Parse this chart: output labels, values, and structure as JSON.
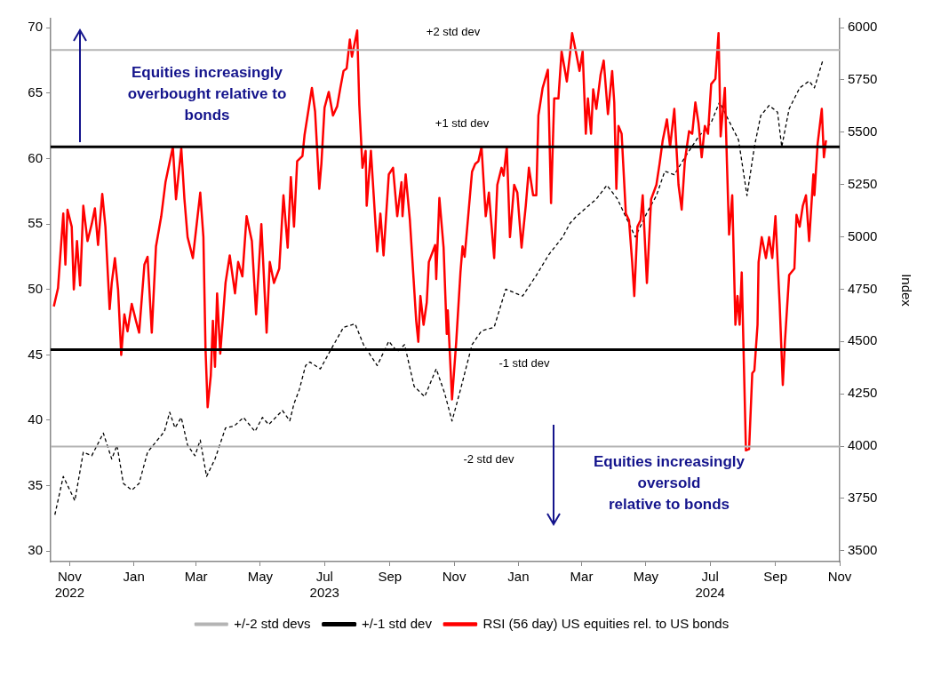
{
  "chart_data": {
    "type": "line",
    "y2label": "Index",
    "xlim": [
      "2022-10-14",
      "2024-11-01"
    ],
    "xticks": [
      {
        "value": "2022-11-01",
        "label": "Nov 2022"
      },
      {
        "value": "2023-01-01",
        "label": "Jan"
      },
      {
        "value": "2023-03-01",
        "label": "Mar"
      },
      {
        "value": "2023-05-01",
        "label": "May"
      },
      {
        "value": "2023-07-01",
        "label": "Jul 2023"
      },
      {
        "value": "2023-09-01",
        "label": "Sep"
      },
      {
        "value": "2023-11-01",
        "label": "Nov"
      },
      {
        "value": "2024-01-01",
        "label": "Jan"
      },
      {
        "value": "2024-03-01",
        "label": "Mar"
      },
      {
        "value": "2024-05-01",
        "label": "May"
      },
      {
        "value": "2024-07-01",
        "label": "Jul 2024"
      },
      {
        "value": "2024-09-01",
        "label": "Sep"
      },
      {
        "value": "2024-11-01",
        "label": "Nov"
      }
    ],
    "ylim": [
      29.2,
      70.7
    ],
    "yticks": [
      30,
      35,
      40,
      45,
      50,
      55,
      60,
      65,
      70
    ],
    "y2lim": [
      3448,
      6043
    ],
    "y2ticks": [
      3500,
      3750,
      4000,
      4250,
      4500,
      4750,
      5000,
      5250,
      5500,
      5750,
      6000
    ],
    "grid": false,
    "legend": "bottom",
    "marker": "none",
    "series": [
      {
        "name": "+/-2 std devs",
        "color": "#b4b4b4",
        "x": [
          "2022-10-14",
          "2024-11-01"
        ],
        "values": [
          68.3,
          68.3
        ]
      },
      {
        "color": "#b4b4b4",
        "x": [
          "2022-10-14",
          "2024-11-01"
        ],
        "values": [
          38.0,
          38.0
        ]
      },
      {
        "name": "+/-1 std dev",
        "color": "#000000",
        "x": [
          "2022-10-14",
          "2024-11-01"
        ],
        "values": [
          60.9,
          60.9
        ]
      },
      {
        "color": "#000000",
        "x": [
          "2022-10-14",
          "2024-11-01"
        ],
        "values": [
          45.4,
          45.4
        ]
      },
      {
        "name": "RSI (56 day) US equities rel. to US bonds",
        "color": "#ff0000",
        "x": [
          "2022-10-17",
          "2022-10-21",
          "2022-10-26",
          "2022-10-28",
          "2022-10-30",
          "2022-11-03",
          "2022-11-05",
          "2022-11-08",
          "2022-11-11",
          "2022-11-14",
          "2022-11-18",
          "2022-11-22",
          "2022-11-25",
          "2022-11-28",
          "2022-12-02",
          "2022-12-05",
          "2022-12-09",
          "2022-12-11",
          "2022-12-14",
          "2022-12-17",
          "2022-12-20",
          "2022-12-23",
          "2022-12-26",
          "2022-12-30",
          "2023-01-03",
          "2023-01-06",
          "2023-01-11",
          "2023-01-14",
          "2023-01-18",
          "2023-01-22",
          "2023-01-27",
          "2023-01-31",
          "2023-02-07",
          "2023-02-10",
          "2023-02-15",
          "2023-02-18",
          "2023-02-21",
          "2023-02-26",
          "2023-03-05",
          "2023-03-08",
          "2023-03-10",
          "2023-03-12",
          "2023-03-15",
          "2023-03-17",
          "2023-03-19",
          "2023-03-21",
          "2023-03-24",
          "2023-03-29",
          "2023-04-02",
          "2023-04-07",
          "2023-04-10",
          "2023-04-14",
          "2023-04-18",
          "2023-04-23",
          "2023-04-27",
          "2023-05-02",
          "2023-05-07",
          "2023-05-10",
          "2023-05-14",
          "2023-05-19",
          "2023-05-23",
          "2023-05-27",
          "2023-05-30",
          "2023-06-02",
          "2023-06-05",
          "2023-06-10",
          "2023-06-12",
          "2023-06-19",
          "2023-06-22",
          "2023-06-26",
          "2023-06-28",
          "2023-07-01",
          "2023-07-05",
          "2023-07-09",
          "2023-07-13",
          "2023-07-16",
          "2023-07-19",
          "2023-07-22",
          "2023-07-25",
          "2023-07-27",
          "2023-08-01",
          "2023-08-03",
          "2023-08-06",
          "2023-08-09",
          "2023-08-10",
          "2023-08-14",
          "2023-08-20",
          "2023-08-23",
          "2023-08-26",
          "2023-08-31",
          "2023-09-04",
          "2023-09-08",
          "2023-09-12",
          "2023-09-13",
          "2023-09-16",
          "2023-09-20",
          "2023-09-26",
          "2023-09-28",
          "2023-09-30",
          "2023-10-03",
          "2023-10-06",
          "2023-10-08",
          "2023-10-14",
          "2023-10-15",
          "2023-10-18",
          "2023-10-22",
          "2023-10-25",
          "2023-10-26",
          "2023-10-30",
          "2023-11-03",
          "2023-11-07",
          "2023-11-09",
          "2023-11-11",
          "2023-11-15",
          "2023-11-18",
          "2023-11-21",
          "2023-11-24",
          "2023-11-27",
          "2023-12-01",
          "2023-12-04",
          "2023-12-09",
          "2023-12-12",
          "2023-12-16",
          "2023-12-18",
          "2023-12-21",
          "2023-12-24",
          "2023-12-28",
          "2023-12-31",
          "2024-01-04",
          "2024-01-08",
          "2024-01-11",
          "2024-01-15",
          "2024-01-18",
          "2024-01-20",
          "2024-01-24",
          "2024-01-29",
          "2024-02-01",
          "2024-02-04",
          "2024-02-08",
          "2024-02-11",
          "2024-02-16",
          "2024-02-19",
          "2024-02-21",
          "2024-02-25",
          "2024-02-28",
          "2024-03-02",
          "2024-03-05",
          "2024-03-07",
          "2024-03-10",
          "2024-03-12",
          "2024-03-15",
          "2024-03-19",
          "2024-03-22",
          "2024-03-26",
          "2024-03-30",
          "2024-04-01",
          "2024-04-03",
          "2024-04-05",
          "2024-04-08",
          "2024-04-12",
          "2024-04-15",
          "2024-04-18",
          "2024-04-20",
          "2024-04-23",
          "2024-04-26",
          "2024-04-28",
          "2024-05-02",
          "2024-05-06",
          "2024-05-11",
          "2024-05-14",
          "2024-05-17",
          "2024-05-21",
          "2024-05-24",
          "2024-05-28",
          "2024-06-01",
          "2024-06-04",
          "2024-06-07",
          "2024-06-11",
          "2024-06-14",
          "2024-06-17",
          "2024-06-20",
          "2024-06-23",
          "2024-06-26",
          "2024-06-29",
          "2024-07-02",
          "2024-07-06",
          "2024-07-09",
          "2024-07-11",
          "2024-07-15",
          "2024-07-17",
          "2024-07-19",
          "2024-07-22",
          "2024-07-25",
          "2024-07-27",
          "2024-07-29",
          "2024-07-31",
          "2024-08-04",
          "2024-08-07",
          "2024-08-10",
          "2024-08-12",
          "2024-08-15",
          "2024-08-16",
          "2024-08-19",
          "2024-08-23",
          "2024-08-26",
          "2024-08-29",
          "2024-09-01",
          "2024-09-05",
          "2024-09-08",
          "2024-09-10",
          "2024-09-14",
          "2024-09-19",
          "2024-09-21",
          "2024-09-24",
          "2024-09-27",
          "2024-09-30",
          "2024-10-03",
          "2024-10-07",
          "2024-10-08",
          "2024-10-11",
          "2024-10-15",
          "2024-10-17",
          "2024-10-19"
        ],
        "values": [
          48.7,
          50.1,
          55.8,
          51.9,
          56.1,
          54.8,
          50.0,
          53.7,
          50.3,
          56.4,
          53.7,
          55.0,
          56.2,
          53.4,
          57.3,
          54.8,
          48.5,
          50.5,
          52.4,
          50.0,
          45.0,
          48.1,
          46.8,
          48.9,
          47.6,
          46.7,
          51.9,
          52.5,
          46.7,
          53.3,
          55.6,
          58.2,
          60.9,
          56.9,
          60.8,
          56.9,
          54.0,
          52.4,
          57.4,
          54.0,
          45.5,
          41.0,
          43.4,
          47.6,
          44.1,
          49.7,
          45.1,
          50.5,
          52.6,
          49.7,
          52.1,
          51.0,
          55.6,
          53.7,
          48.1,
          55.0,
          46.7,
          52.1,
          50.5,
          51.6,
          57.2,
          53.2,
          58.6,
          54.8,
          59.8,
          60.2,
          61.8,
          65.4,
          63.6,
          57.7,
          59.6,
          63.9,
          65.1,
          63.3,
          64.0,
          65.4,
          66.7,
          66.9,
          69.1,
          67.8,
          69.8,
          64.1,
          59.3,
          60.6,
          56.4,
          60.6,
          52.9,
          55.8,
          52.6,
          58.8,
          59.3,
          55.6,
          58.2,
          55.6,
          58.8,
          55.3,
          47.6,
          46.0,
          49.5,
          47.3,
          49.0,
          52.1,
          53.4,
          50.8,
          57.0,
          53.2,
          46.6,
          48.4,
          41.6,
          46.0,
          51.3,
          53.3,
          52.5,
          56.2,
          59.0,
          59.6,
          59.8,
          60.9,
          55.6,
          57.4,
          52.4,
          58.0,
          59.3,
          58.7,
          60.9,
          54.0,
          58.0,
          57.4,
          53.2,
          56.4,
          59.3,
          57.2,
          57.2,
          63.3,
          65.4,
          66.8,
          56.6,
          64.6,
          64.6,
          68.2,
          65.9,
          68.0,
          69.6,
          68.0,
          66.7,
          68.2,
          61.9,
          64.6,
          61.9,
          65.3,
          63.8,
          66.4,
          67.5,
          63.4,
          66.7,
          64.3,
          57.7,
          62.5,
          61.9,
          55.8,
          55.3,
          52.1,
          49.5,
          54.8,
          55.3,
          57.2,
          50.5,
          56.9,
          58.0,
          59.6,
          61.4,
          63.0,
          60.9,
          63.8,
          58.0,
          56.1,
          59.8,
          62.1,
          61.9,
          64.3,
          62.7,
          60.1,
          62.5,
          61.9,
          65.7,
          66.1,
          69.6,
          61.7,
          65.4,
          59.6,
          54.2,
          57.2,
          47.3,
          49.5,
          47.3,
          51.3,
          37.7,
          37.8,
          43.6,
          43.8,
          47.3,
          52.1,
          54.0,
          52.4,
          54.0,
          52.4,
          55.6,
          48.9,
          42.7,
          46.0,
          51.1,
          51.6,
          55.7,
          54.8,
          56.4,
          57.2,
          53.7,
          58.8,
          57.2,
          61.1,
          63.8,
          60.1,
          61.4
        ]
      },
      {
        "color": "#000000",
        "axis": "y2",
        "line_style": "dashed",
        "x": [
          "2022-10-18",
          "2022-10-26",
          "2022-11-06",
          "2022-11-14",
          "2022-11-22",
          "2022-12-03",
          "2022-12-11",
          "2022-12-16",
          "2022-12-22",
          "2022-12-30",
          "2023-01-06",
          "2023-01-14",
          "2023-01-30",
          "2023-02-04",
          "2023-02-09",
          "2023-02-15",
          "2023-02-21",
          "2023-02-28",
          "2023-03-05",
          "2023-03-11",
          "2023-03-19",
          "2023-03-29",
          "2023-04-06",
          "2023-04-15",
          "2023-04-26",
          "2023-05-03",
          "2023-05-09",
          "2023-05-22",
          "2023-05-29",
          "2023-06-02",
          "2023-06-07",
          "2023-06-13",
          "2023-06-17",
          "2023-06-27",
          "2023-07-06",
          "2023-07-19",
          "2023-07-30",
          "2023-08-07",
          "2023-08-20",
          "2023-08-31",
          "2023-09-08",
          "2023-09-15",
          "2023-09-24",
          "2023-10-04",
          "2023-10-15",
          "2023-10-23",
          "2023-10-30",
          "2023-11-07",
          "2023-11-18",
          "2023-11-27",
          "2023-12-09",
          "2023-12-20",
          "2024-01-05",
          "2024-01-18",
          "2024-01-30",
          "2024-02-12",
          "2024-02-19",
          "2024-02-25",
          "2024-03-15",
          "2024-03-25",
          "2024-04-04",
          "2024-04-21",
          "2024-05-02",
          "2024-05-11",
          "2024-05-19",
          "2024-05-28",
          "2024-06-07",
          "2024-06-20",
          "2024-07-02",
          "2024-07-10",
          "2024-07-18",
          "2024-07-28",
          "2024-08-05",
          "2024-08-12",
          "2024-08-18",
          "2024-08-26",
          "2024-09-03",
          "2024-09-07",
          "2024-09-14",
          "2024-09-24",
          "2024-10-03",
          "2024-10-08",
          "2024-10-16"
        ],
        "values": [
          3672,
          3855,
          3739,
          3971,
          3954,
          4062,
          3938,
          4004,
          3822,
          3789,
          3822,
          3971,
          4070,
          4162,
          4087,
          4137,
          4004,
          3954,
          4029,
          3855,
          3938,
          4087,
          4095,
          4137,
          4070,
          4137,
          4103,
          4170,
          4121,
          4203,
          4269,
          4385,
          4402,
          4369,
          4452,
          4568,
          4584,
          4485,
          4385,
          4501,
          4452,
          4485,
          4286,
          4236,
          4369,
          4253,
          4120,
          4269,
          4485,
          4551,
          4568,
          4750,
          4717,
          4816,
          4916,
          4999,
          5065,
          5098,
          5181,
          5247,
          5181,
          4999,
          5115,
          5197,
          5314,
          5297,
          5380,
          5479,
          5546,
          5645,
          5563,
          5463,
          5197,
          5430,
          5579,
          5628,
          5596,
          5430,
          5612,
          5712,
          5745,
          5712,
          5844
        ]
      }
    ],
    "annotations": [
      "+2 std dev",
      "+1 std dev",
      "-1 std dev",
      "-2 std dev",
      "Equities increasingly\noverbought relative to\nbonds",
      "Equities increasingly\noversold\nrelative to bonds"
    ]
  }
}
